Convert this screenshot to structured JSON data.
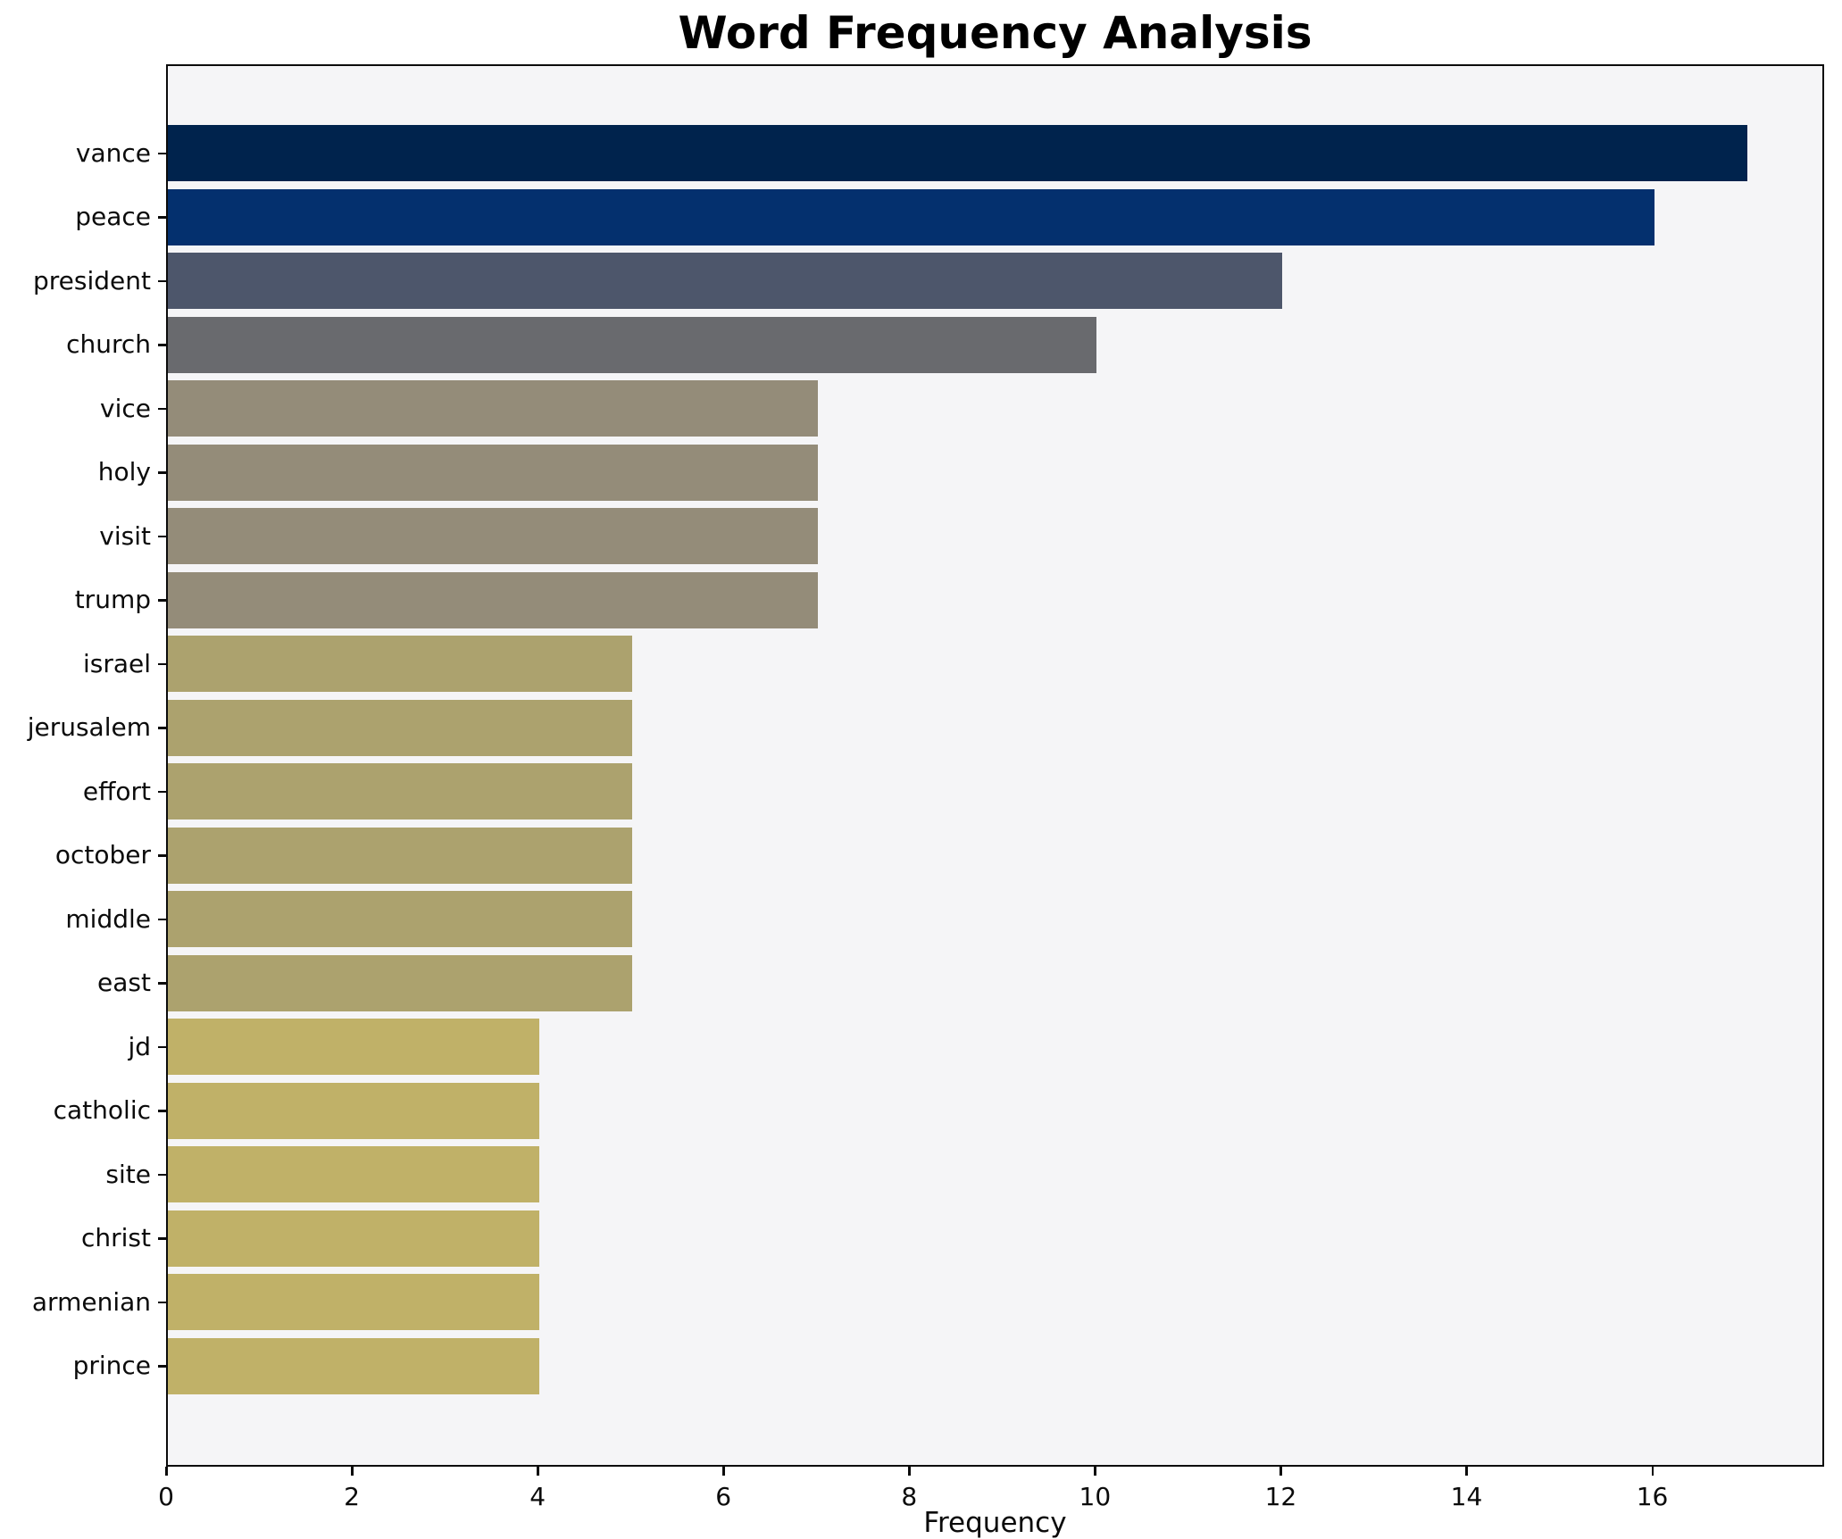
{
  "chart_data": {
    "type": "bar",
    "orientation": "horizontal",
    "title": "Word Frequency Analysis",
    "xlabel": "Frequency",
    "ylabel": "",
    "categories": [
      "vance",
      "peace",
      "president",
      "church",
      "vice",
      "holy",
      "visit",
      "trump",
      "israel",
      "jerusalem",
      "effort",
      "october",
      "middle",
      "east",
      "jd",
      "catholic",
      "site",
      "christ",
      "armenian",
      "prince"
    ],
    "values": [
      17,
      16,
      12,
      10,
      7,
      7,
      7,
      7,
      5,
      5,
      5,
      5,
      5,
      5,
      4,
      4,
      4,
      4,
      4,
      4
    ],
    "bar_colors": [
      "#00234d",
      "#04306e",
      "#4d566b",
      "#696a6e",
      "#948c79",
      "#948c79",
      "#948c79",
      "#948c79",
      "#aca26e",
      "#aca26e",
      "#aca26e",
      "#aca26e",
      "#aca26e",
      "#aca26e",
      "#c0b168",
      "#c0b168",
      "#c0b168",
      "#c0b168",
      "#c0b168",
      "#c0b168"
    ],
    "x_ticks": [
      0,
      2,
      4,
      6,
      8,
      10,
      12,
      14,
      16
    ],
    "xlim": [
      0,
      17.85
    ],
    "grid": false,
    "legend": "none",
    "plot_background": "#f5f5f7",
    "figure_background": "#ffffff",
    "spine_color": "#0b0b0b"
  }
}
